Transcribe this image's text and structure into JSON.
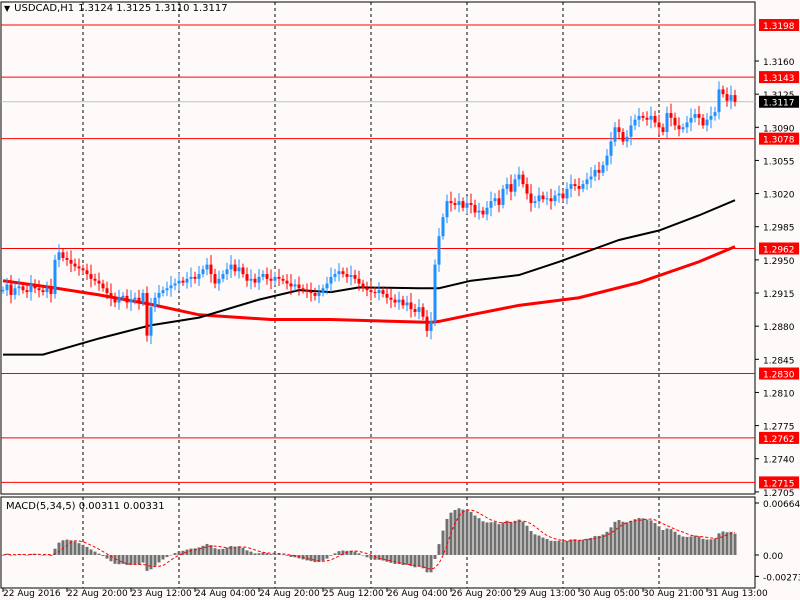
{
  "header": {
    "symbol": "USDCAD,H1",
    "ohlc": "1.3124 1.3125 1.3110 1.3117",
    "menu_icon": "triangle-down-icon"
  },
  "colors": {
    "bull": "#1e90ff",
    "bear": "#ff0000",
    "level": "#ff0000",
    "ma_fast": "#000000",
    "ma_slow": "#ff0000",
    "histogram": "#707070",
    "signal": "#ff0000",
    "bid": "#c0c0c0"
  },
  "chart_data": {
    "type": "candlestick",
    "timeframe": "H1",
    "ylim": [
      1.27,
      1.321
    ],
    "y_ticks": [
      "1.3160",
      "1.3125",
      "1.3090",
      "1.3055",
      "1.3020",
      "1.2985",
      "1.2950",
      "1.2915",
      "1.2880",
      "1.2845",
      "1.2810",
      "1.2775",
      "1.2740",
      "1.2705"
    ],
    "levels": [
      "1.3198",
      "1.3143",
      "1.3078",
      "1.2962",
      "1.2830",
      "1.2762",
      "1.2715"
    ],
    "current_price": "1.3117",
    "x_labels": [
      "22 Aug 2016",
      "22 Aug 20:00",
      "23 Aug 12:00",
      "24 Aug 04:00",
      "24 Aug 20:00",
      "25 Aug 12:00",
      "26 Aug 04:00",
      "26 Aug 20:00",
      "29 Aug 13:00",
      "30 Aug 05:00",
      "30 Aug 21:00",
      "31 Aug 13:00"
    ],
    "close": [
      1.2918,
      1.2924,
      1.2913,
      1.292,
      1.2922,
      1.2918,
      1.2916,
      1.2924,
      1.292,
      1.2918,
      1.2916,
      1.292,
      1.2914,
      1.295,
      1.2958,
      1.2952,
      1.295,
      1.2946,
      1.2943,
      1.2941,
      1.2939,
      1.2935,
      1.293,
      1.2928,
      1.2925,
      1.292,
      1.2915,
      1.291,
      1.2905,
      1.291,
      1.2912,
      1.2905,
      1.2908,
      1.291,
      1.2905,
      1.2915,
      1.287,
      1.29,
      1.291,
      1.2915,
      1.2918,
      1.292,
      1.2923,
      1.2925,
      1.2928,
      1.2926,
      1.293,
      1.2932,
      1.293,
      1.2935,
      1.294,
      1.2945,
      1.2935,
      1.2925,
      1.293,
      1.2935,
      1.294,
      1.2945,
      1.2938,
      1.2942,
      1.2935,
      1.2928,
      1.293,
      1.2926,
      1.2932,
      1.2935,
      1.293,
      1.2928,
      1.2932,
      1.293,
      1.2928,
      1.2925,
      1.2922,
      1.2924,
      1.292,
      1.2918,
      1.2916,
      1.2915,
      1.2912,
      1.2915,
      1.292,
      1.2925,
      1.2932,
      1.2935,
      1.2938,
      1.2935,
      1.2932,
      1.2934,
      1.293,
      1.2925,
      1.292,
      1.2918,
      1.2916,
      1.2915,
      1.2918,
      1.2914,
      1.291,
      1.2908,
      1.2905,
      1.2908,
      1.2902,
      1.2905,
      1.2898,
      1.2895,
      1.29,
      1.289,
      1.2875,
      1.2885,
      1.2945,
      1.2975,
      1.2995,
      1.3012,
      1.301,
      1.3008,
      1.3012,
      1.3005,
      1.301,
      1.3008,
      1.3,
      1.3002,
      1.2998,
      1.3005,
      1.3012,
      1.3015,
      1.3008,
      1.3025,
      1.303,
      1.3022,
      1.3035,
      1.304,
      1.303,
      1.302,
      1.301,
      1.3012,
      1.3018,
      1.3014,
      1.3015,
      1.3012,
      1.3018,
      1.302,
      1.3015,
      1.3025,
      1.303,
      1.3028,
      1.3025,
      1.303,
      1.3035,
      1.3038,
      1.3045,
      1.3042,
      1.305,
      1.306,
      1.3075,
      1.309,
      1.3085,
      1.3075,
      1.308,
      1.3092,
      1.3098,
      1.3102,
      1.31,
      1.3098,
      1.3102,
      1.3095,
      1.309,
      1.3085,
      1.3105,
      1.31,
      1.3092,
      1.3088,
      1.309,
      1.3095,
      1.31,
      1.3104,
      1.31,
      1.3092,
      1.3098,
      1.3102,
      1.3106,
      1.313,
      1.3125,
      1.3118,
      1.3124,
      1.3117
    ],
    "ma_fast": [
      [
        0,
        1.285
      ],
      [
        10,
        1.285
      ],
      [
        24,
        1.2867
      ],
      [
        37,
        1.2881
      ],
      [
        49,
        1.2889
      ],
      [
        64,
        1.2908
      ],
      [
        74,
        1.2918
      ],
      [
        82,
        1.2916
      ],
      [
        89,
        1.2921
      ],
      [
        104,
        1.292
      ],
      [
        109,
        1.292
      ],
      [
        117,
        1.2928
      ],
      [
        129,
        1.2934
      ],
      [
        139,
        1.2948
      ],
      [
        154,
        1.2971
      ],
      [
        164,
        1.2981
      ],
      [
        174,
        1.2997
      ],
      [
        183,
        1.3013
      ]
    ],
    "ma_slow": [
      [
        0,
        1.2928
      ],
      [
        12,
        1.2921
      ],
      [
        24,
        1.2913
      ],
      [
        37,
        1.2903
      ],
      [
        49,
        1.2892
      ],
      [
        67,
        1.2887
      ],
      [
        82,
        1.2887
      ],
      [
        107,
        1.2884
      ],
      [
        109,
        1.2885
      ],
      [
        117,
        1.2892
      ],
      [
        129,
        1.2902
      ],
      [
        144,
        1.291
      ],
      [
        159,
        1.2926
      ],
      [
        174,
        1.2948
      ],
      [
        183,
        1.2964
      ]
    ],
    "macd": {
      "label": "MACD(5,34,5) 0.00311 0.00331",
      "main": 0.00311,
      "signal": 0.00331,
      "y_ticks": [
        "0.00664",
        "0.00",
        "-0.00273"
      ]
    }
  }
}
